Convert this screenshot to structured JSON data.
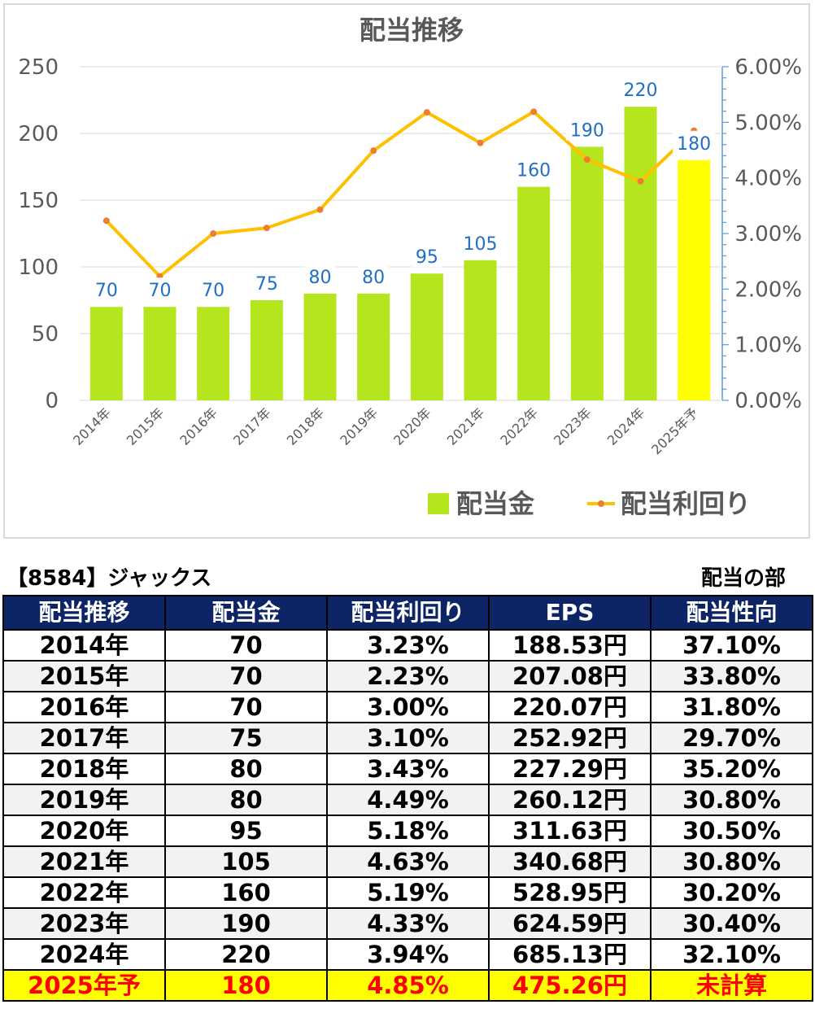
{
  "chart_data": {
    "type": "bar",
    "title": "配当推移",
    "categories": [
      "2014年",
      "2015年",
      "2016年",
      "2017年",
      "2018年",
      "2019年",
      "2020年",
      "2021年",
      "2022年",
      "2023年",
      "2024年",
      "2025年予"
    ],
    "series": [
      {
        "name": "配当金",
        "type": "bar",
        "axis": "left",
        "values": [
          70,
          70,
          70,
          75,
          80,
          80,
          95,
          105,
          160,
          190,
          220,
          180
        ],
        "color": "#b5e61d",
        "forecast_color": "#ffff00"
      },
      {
        "name": "配当利回り",
        "type": "line",
        "axis": "right",
        "values": [
          3.23,
          2.23,
          3.0,
          3.1,
          3.43,
          4.49,
          5.18,
          4.63,
          5.19,
          4.33,
          3.94,
          4.85
        ],
        "color": "#ffc000",
        "marker_color": "#ed7d31"
      }
    ],
    "ylim_left": [
      0,
      250
    ],
    "yticks_left": [
      "0",
      "50",
      "100",
      "150",
      "200",
      "250"
    ],
    "ylim_right": [
      0,
      6
    ],
    "yticks_right": [
      "0.00%",
      "1.00%",
      "2.00%",
      "3.00%",
      "4.00%",
      "5.00%",
      "6.00%"
    ],
    "data_labels": [
      "70",
      "70",
      "70",
      "75",
      "80",
      "80",
      "95",
      "105",
      "160",
      "190",
      "220",
      "180"
    ],
    "data_label_color": "#1f6fc6",
    "grid": true,
    "legend_position": "bottom-right"
  },
  "caption": {
    "left": "【8584】ジャックス",
    "right": "配当の部"
  },
  "table": {
    "headers": [
      "配当推移",
      "配当金",
      "配当利回り",
      "EPS",
      "配当性向"
    ],
    "rows": [
      [
        "2014年",
        "70",
        "3.23%",
        "188.53円",
        "37.10%"
      ],
      [
        "2015年",
        "70",
        "2.23%",
        "207.08円",
        "33.80%"
      ],
      [
        "2016年",
        "70",
        "3.00%",
        "220.07円",
        "31.80%"
      ],
      [
        "2017年",
        "75",
        "3.10%",
        "252.92円",
        "29.70%"
      ],
      [
        "2018年",
        "80",
        "3.43%",
        "227.29円",
        "35.20%"
      ],
      [
        "2019年",
        "80",
        "4.49%",
        "260.12円",
        "30.80%"
      ],
      [
        "2020年",
        "95",
        "5.18%",
        "311.63円",
        "30.50%"
      ],
      [
        "2021年",
        "105",
        "4.63%",
        "340.68円",
        "30.80%"
      ],
      [
        "2022年",
        "160",
        "5.19%",
        "528.95円",
        "30.20%"
      ],
      [
        "2023年",
        "190",
        "4.33%",
        "624.59円",
        "30.40%"
      ],
      [
        "2024年",
        "220",
        "3.94%",
        "685.13円",
        "32.10%"
      ],
      [
        "2025年予",
        "180",
        "4.85%",
        "475.26円",
        "未計算"
      ]
    ]
  }
}
